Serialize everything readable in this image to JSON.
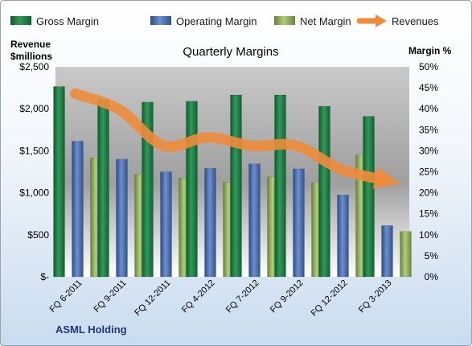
{
  "chart_data": {
    "type": "bar",
    "title": "Quarterly Margins",
    "categories": [
      "FQ 6-2011",
      "FQ 9-2011",
      "FQ 12-2011",
      "FQ 4-2012",
      "FQ 7-2012",
      "FQ 9-2012",
      "FQ 12-2012",
      "FQ 3-2013"
    ],
    "series": [
      {
        "name": "Gross Margin",
        "axis": "right",
        "color": "#1f7a44",
        "values": [
          45.3,
          42.2,
          41.6,
          41.8,
          43.3,
          43.3,
          40.6,
          38.2
        ]
      },
      {
        "name": "Operating Margin",
        "axis": "right",
        "color": "#4a6fb0",
        "values": [
          32.3,
          28.0,
          25.0,
          25.8,
          26.9,
          25.7,
          19.5,
          12.2
        ]
      },
      {
        "name": "Net Margin",
        "axis": "right",
        "color": "#8fad55",
        "values": [
          28.3,
          24.4,
          23.5,
          22.5,
          23.8,
          22.4,
          29.0,
          10.8
        ]
      },
      {
        "name": "Revenues",
        "axis": "left",
        "type": "line-arrow",
        "color": "#ef8c3a",
        "values": [
          2180,
          1990,
          1560,
          1660,
          1560,
          1560,
          1280,
          1150
        ]
      }
    ],
    "left_axis": {
      "label": "Revenue\n$millions",
      "range": [
        0,
        2500
      ],
      "ticks": [
        "$-",
        "$500",
        "$1,000",
        "$1,500",
        "$2,000",
        "$2,500"
      ],
      "tick_values": [
        0,
        500,
        1000,
        1500,
        2000,
        2500
      ]
    },
    "right_axis": {
      "label": "Margin %",
      "range": [
        0,
        50
      ],
      "ticks": [
        "0%",
        "5%",
        "10%",
        "15%",
        "20%",
        "25%",
        "30%",
        "35%",
        "40%",
        "45%",
        "50%"
      ],
      "tick_values": [
        0,
        5,
        10,
        15,
        20,
        25,
        30,
        35,
        40,
        45,
        50
      ]
    },
    "legend_position": "top",
    "grid": false,
    "footer_text": "ASML Holding"
  }
}
